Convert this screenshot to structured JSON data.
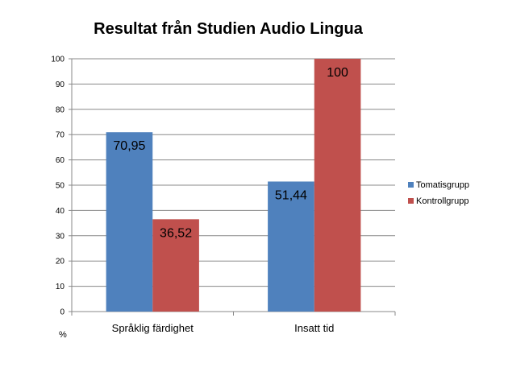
{
  "chart_data": {
    "type": "bar",
    "title": "Resultat från Studien Audio Lingua",
    "categories": [
      "Språklig färdighet",
      "Insatt tid"
    ],
    "series": [
      {
        "name": "Tomatisgrupp",
        "values": [
          70.95,
          51.44
        ],
        "labels": [
          "70,95",
          "51,44"
        ],
        "color": "#4F81BD"
      },
      {
        "name": "Kontrollgrupp",
        "values": [
          36.52,
          100
        ],
        "labels": [
          "36,52",
          "100"
        ],
        "color": "#C0504D"
      }
    ],
    "ylim": [
      0,
      100
    ],
    "yticks": [
      0,
      10,
      20,
      30,
      40,
      50,
      60,
      70,
      80,
      90,
      100
    ],
    "unit_label": "%",
    "grid": true,
    "legend_position": "right"
  }
}
